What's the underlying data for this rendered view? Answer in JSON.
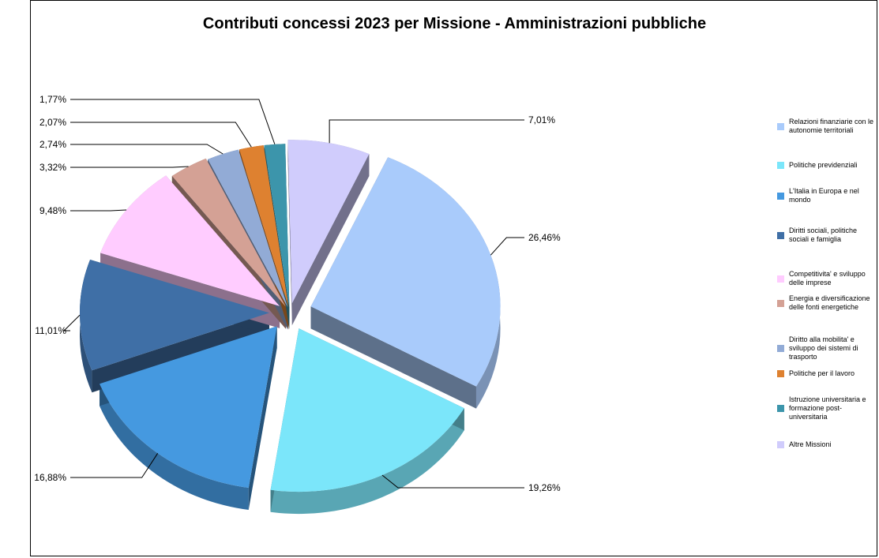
{
  "chart_data": {
    "type": "pie",
    "title": "Contributi concessi 2023 per Missione - Amministrazioni pubbliche",
    "legend_position": "right",
    "slices": [
      {
        "label": "Relazioni finanziarie con le autonomie territoriali",
        "value": 26.46,
        "value_label": "26,46%",
        "color": "#A9CBFB"
      },
      {
        "label": "Politiche previdenziali",
        "value": 19.26,
        "value_label": "19,26%",
        "color": "#7BE6FA"
      },
      {
        "label": "L'Italia in Europa e nel mondo",
        "value": 16.88,
        "value_label": "16,88%",
        "color": "#4599E0"
      },
      {
        "label": "Diritti sociali, politiche sociali e famiglia",
        "value": 11.01,
        "value_label": "11,01%",
        "color": "#3F6FA6"
      },
      {
        "label": "Competitivita' e sviluppo delle imprese",
        "value": 9.48,
        "value_label": "9,48%",
        "color": "#FFCCFF"
      },
      {
        "label": "Energia e diversificazione delle fonti energetiche",
        "value": 3.32,
        "value_label": "3,32%",
        "color": "#D4A195"
      },
      {
        "label": "Diritto alla mobilita' e sviluppo dei sistemi di trasporto",
        "value": 2.74,
        "value_label": "2,74%",
        "color": "#92ABD6"
      },
      {
        "label": "Politiche per il lavoro",
        "value": 2.07,
        "value_label": "2,07%",
        "color": "#DE8130"
      },
      {
        "label": "Istruzione universitaria e formazione post-universitaria",
        "value": 1.77,
        "value_label": "1,77%",
        "color": "#3C95AB"
      },
      {
        "label": "Altre Missioni",
        "value": 7.01,
        "value_label": "7,01%",
        "color": "#D0CCFC"
      }
    ]
  }
}
